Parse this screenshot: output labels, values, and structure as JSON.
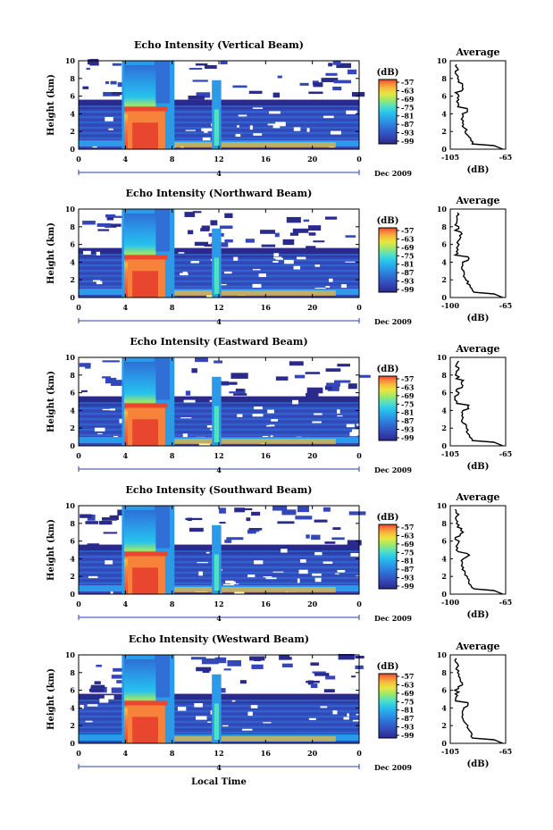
{
  "figure": {
    "xlabel": "Local Time",
    "date_label": "Dec 2009",
    "day_marker": "4"
  },
  "chart_data": [
    {
      "type": "heatmap",
      "title": "Echo Intensity (Vertical Beam)",
      "ylabel": "Height (km)",
      "xlabel": "Local Time",
      "x_ticks": [
        "0",
        "4",
        "8",
        "12",
        "16",
        "20",
        "0"
      ],
      "y_ticks": [
        "0",
        "2",
        "4",
        "6",
        "8",
        "10"
      ],
      "xlim": [
        0,
        24
      ],
      "ylim": [
        0,
        10
      ],
      "colorbar": {
        "label": "(dB)",
        "ticks": [
          "-57",
          "-63",
          "-69",
          "-75",
          "-81",
          "-87",
          "-93",
          "-99"
        ]
      },
      "average": {
        "title": "Average",
        "xlabel": "(dB)",
        "x_ticks": [
          "-105",
          "-65"
        ],
        "y_ticks": [
          "0",
          "2",
          "4",
          "6",
          "8",
          "10"
        ],
        "xlim": [
          -105,
          -65
        ]
      }
    },
    {
      "type": "heatmap",
      "title": "Echo Intensity (Northward Beam)",
      "ylabel": "Height (km)",
      "xlabel": "Local Time",
      "x_ticks": [
        "0",
        "4",
        "8",
        "12",
        "16",
        "20",
        "0"
      ],
      "y_ticks": [
        "0",
        "2",
        "4",
        "6",
        "8",
        "10"
      ],
      "xlim": [
        0,
        24
      ],
      "ylim": [
        0,
        10
      ],
      "colorbar": {
        "label": "(dB)",
        "ticks": [
          "-57",
          "-63",
          "-69",
          "-75",
          "-81",
          "-87",
          "-93",
          "-99"
        ]
      },
      "average": {
        "title": "Average",
        "xlabel": "(dB)",
        "x_ticks": [
          "-100",
          "-65"
        ],
        "y_ticks": [
          "0",
          "2",
          "4",
          "6",
          "8",
          "10"
        ],
        "xlim": [
          -100,
          -65
        ]
      }
    },
    {
      "type": "heatmap",
      "title": "Echo Intensity (Eastward Beam)",
      "ylabel": "Height (km)",
      "xlabel": "Local Time",
      "x_ticks": [
        "0",
        "4",
        "8",
        "12",
        "16",
        "20",
        "0"
      ],
      "y_ticks": [
        "0",
        "2",
        "4",
        "6",
        "8",
        "10"
      ],
      "xlim": [
        0,
        24
      ],
      "ylim": [
        0,
        10
      ],
      "colorbar": {
        "label": "(dB)",
        "ticks": [
          "-57",
          "-63",
          "-69",
          "-75",
          "-81",
          "-87",
          "-93",
          "-99"
        ]
      },
      "average": {
        "title": "Average",
        "xlabel": "(dB)",
        "x_ticks": [
          "-105",
          "-65"
        ],
        "y_ticks": [
          "0",
          "2",
          "4",
          "6",
          "8",
          "10"
        ],
        "xlim": [
          -105,
          -65
        ]
      }
    },
    {
      "type": "heatmap",
      "title": "Echo Intensity (Southward Beam)",
      "ylabel": "Height (km)",
      "xlabel": "Local Time",
      "x_ticks": [
        "0",
        "4",
        "8",
        "12",
        "16",
        "20",
        "0"
      ],
      "y_ticks": [
        "0",
        "2",
        "4",
        "6",
        "8",
        "10"
      ],
      "xlim": [
        0,
        24
      ],
      "ylim": [
        0,
        10
      ],
      "colorbar": {
        "label": "(dB)",
        "ticks": [
          "-57",
          "-63",
          "-69",
          "-75",
          "-81",
          "-87",
          "-93",
          "-99"
        ]
      },
      "average": {
        "title": "Average",
        "xlabel": "(dB)",
        "x_ticks": [
          "-100",
          "-65"
        ],
        "y_ticks": [
          "0",
          "2",
          "4",
          "6",
          "8",
          "10"
        ],
        "xlim": [
          -100,
          -65
        ]
      }
    },
    {
      "type": "heatmap",
      "title": "Echo Intensity (Westward Beam)",
      "ylabel": "Height (km)",
      "xlabel": "Local Time",
      "x_ticks": [
        "0",
        "4",
        "8",
        "12",
        "16",
        "20",
        "0"
      ],
      "y_ticks": [
        "0",
        "2",
        "4",
        "6",
        "8",
        "10"
      ],
      "xlim": [
        0,
        24
      ],
      "ylim": [
        0,
        10
      ],
      "colorbar": {
        "label": "(dB)",
        "ticks": [
          "-57",
          "-63",
          "-69",
          "-75",
          "-81",
          "-87",
          "-93",
          "-99"
        ]
      },
      "average": {
        "title": "Average",
        "xlabel": "(dB)",
        "x_ticks": [
          "-105",
          "-65"
        ],
        "y_ticks": [
          "0",
          "2",
          "4",
          "6",
          "8",
          "10"
        ],
        "xlim": [
          -105,
          -65
        ]
      }
    }
  ],
  "colormap": [
    "#2a2a8c",
    "#3347b8",
    "#2f6fd6",
    "#2a9be8",
    "#27c3ec",
    "#4fe0c8",
    "#9be86a",
    "#e8e642",
    "#f7b93a",
    "#f7823a",
    "#e8462e"
  ]
}
